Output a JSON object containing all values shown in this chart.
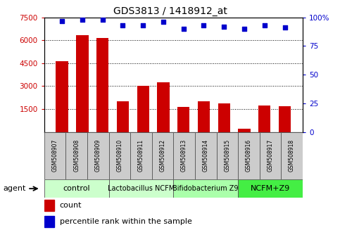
{
  "title": "GDS3813 / 1418912_at",
  "samples": [
    "GSM508907",
    "GSM508908",
    "GSM508909",
    "GSM508910",
    "GSM508911",
    "GSM508912",
    "GSM508913",
    "GSM508914",
    "GSM508915",
    "GSM508916",
    "GSM508917",
    "GSM508918"
  ],
  "counts": [
    4650,
    6350,
    6150,
    2000,
    3020,
    3230,
    1620,
    2000,
    1850,
    200,
    1750,
    1700
  ],
  "percentile_ranks": [
    97,
    98,
    98,
    93,
    93,
    96,
    90,
    93,
    92,
    90,
    93,
    91
  ],
  "groups": [
    {
      "label": "control",
      "start": 0,
      "end": 3,
      "color": "#ccffcc",
      "fontsize": 8
    },
    {
      "label": "Lactobacillus NCFM",
      "start": 3,
      "end": 6,
      "color": "#ccffcc",
      "fontsize": 7
    },
    {
      "label": "Bifidobacterium Z9",
      "start": 6,
      "end": 9,
      "color": "#aaffaa",
      "fontsize": 7
    },
    {
      "label": "NCFM+Z9",
      "start": 9,
      "end": 12,
      "color": "#44ee44",
      "fontsize": 8
    }
  ],
  "ylim_left": [
    0,
    7500
  ],
  "ylim_right": [
    0,
    100
  ],
  "yticks_left": [
    1500,
    3000,
    4500,
    6000,
    7500
  ],
  "ytick_labels_left": [
    "1500",
    "3000",
    "4500",
    "6000",
    "7500"
  ],
  "yticks_right": [
    0,
    25,
    50,
    75,
    100
  ],
  "ytick_labels_right": [
    "0",
    "25",
    "50",
    "75",
    "100%"
  ],
  "bar_color": "#cc0000",
  "dot_color": "#0000cc",
  "background_color": "#ffffff",
  "grid_color": "#000000",
  "agent_label": "agent",
  "legend_count_color": "#cc0000",
  "legend_dot_color": "#0000cc",
  "sample_cell_color": "#cccccc",
  "sample_cell_edge": "#888888"
}
